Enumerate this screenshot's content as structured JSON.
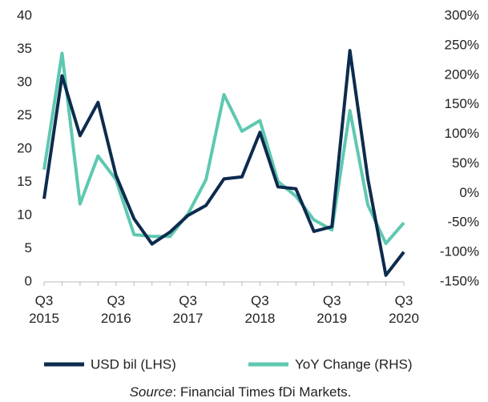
{
  "chart_data": {
    "type": "line",
    "categories": [
      "Q3 2015",
      null,
      null,
      null,
      "Q3 2016",
      null,
      null,
      null,
      "Q3 2017",
      null,
      null,
      null,
      "Q3 2018",
      null,
      null,
      null,
      "Q3 2019",
      null,
      null,
      null,
      "Q3 2020"
    ],
    "series": [
      {
        "name": "USD bil (LHS)",
        "color": "#0d2b4e",
        "values": [
          12.5,
          31,
          22,
          27,
          16,
          9.5,
          5.7,
          7.5,
          10,
          11.5,
          15.5,
          15.8,
          22.5,
          14.3,
          14,
          7.6,
          8.3,
          34.8,
          15.5,
          1,
          4.5
        ]
      },
      {
        "name": "YoY Change (RHS)",
        "color": "#5ec8b0",
        "axis": "y2",
        "values": [
          40,
          237,
          -18,
          63,
          23,
          -70,
          -73,
          -73,
          -35,
          23,
          167,
          105,
          123,
          20,
          -5,
          -45,
          -62,
          140,
          -20,
          -85,
          -50
        ]
      }
    ],
    "ylim": [
      0,
      40
    ],
    "yticks": [
      0,
      5,
      10,
      15,
      20,
      25,
      30,
      35,
      40
    ],
    "y2lim": [
      -150,
      300
    ],
    "y2ticks": [
      {
        "value": -150,
        "label": "-150%"
      },
      {
        "value": -100,
        "label": "-100%"
      },
      {
        "value": -50,
        "label": "-50%"
      },
      {
        "value": 0,
        "label": "0%"
      },
      {
        "value": 50,
        "label": "50%"
      },
      {
        "value": 100,
        "label": "100%"
      },
      {
        "value": 150,
        "label": "150%"
      },
      {
        "value": 200,
        "label": "200%"
      },
      {
        "value": 250,
        "label": "250%"
      },
      {
        "value": 300,
        "label": "300%"
      }
    ],
    "grid": false,
    "legend": "bottom",
    "source_label": "Source",
    "source_text": ": Financial Times fDi Markets."
  }
}
